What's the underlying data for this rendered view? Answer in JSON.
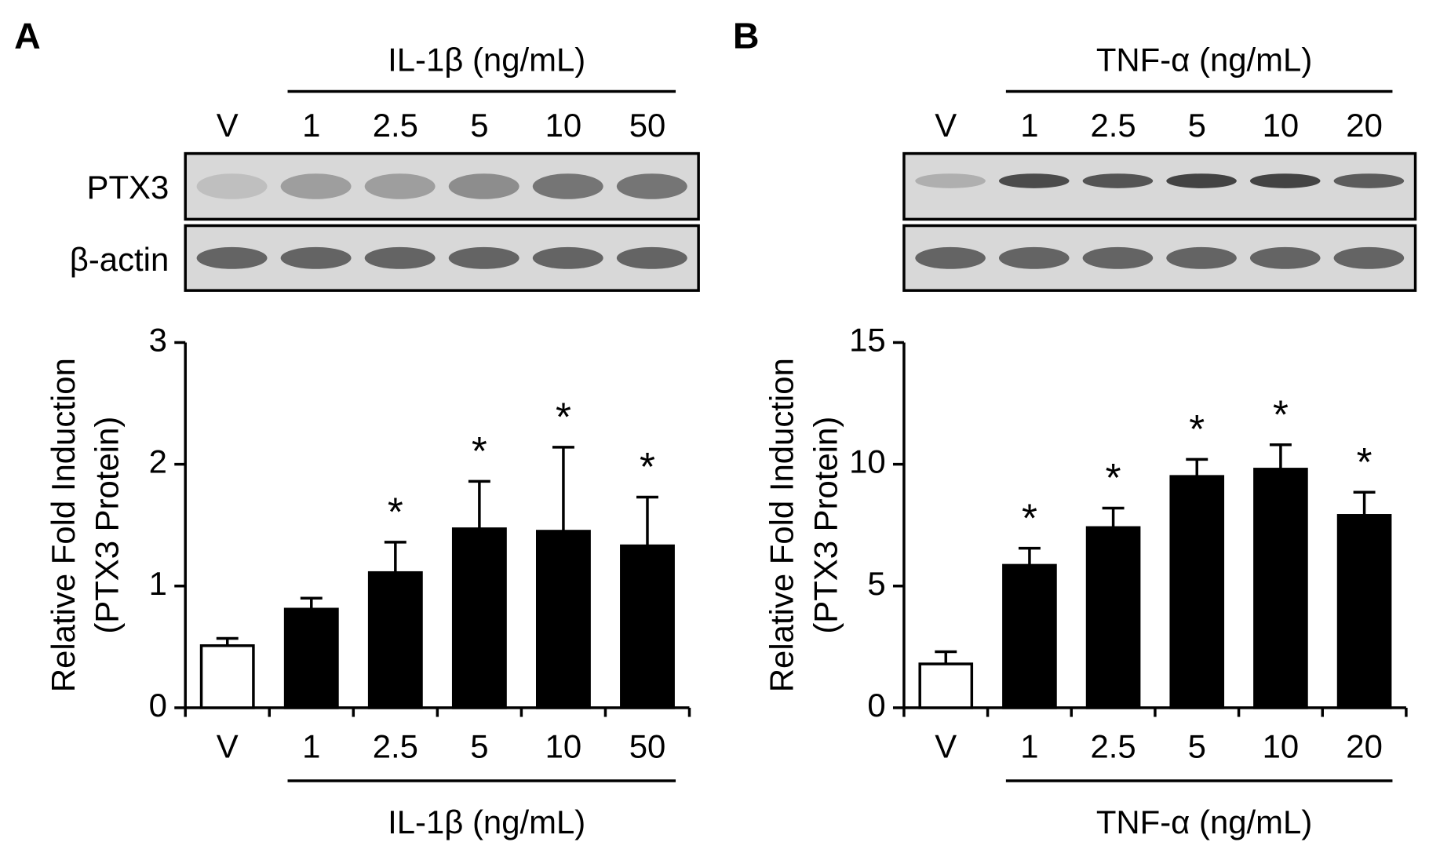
{
  "chart_data": [
    {
      "type": "bar",
      "panel_label": "A",
      "treatment_label": "IL-1β (ng/mL)",
      "y_label": [
        "Relative Fold Induction",
        "(PTX3 Protein)"
      ],
      "blot_labels": [
        "PTX3",
        "β-actin"
      ],
      "categories": [
        "V",
        "1",
        "2.5",
        "5",
        "10",
        "50"
      ],
      "values": [
        0.51,
        0.81,
        1.11,
        1.47,
        1.45,
        1.33
      ],
      "errors": [
        0.06,
        0.09,
        0.25,
        0.39,
        0.69,
        0.4
      ],
      "significance": [
        null,
        null,
        "*",
        "*",
        "*",
        "*"
      ],
      "colors": [
        "#ffffff",
        "#000000",
        "#000000",
        "#000000",
        "#000000",
        "#000000"
      ],
      "ylim": [
        0,
        3
      ],
      "yticks": [
        0,
        1,
        2,
        3
      ]
    },
    {
      "type": "bar",
      "panel_label": "B",
      "treatment_label": "TNF-α (ng/mL)",
      "y_label": [
        "Relative Fold Induction",
        "(PTX3 Protein)"
      ],
      "categories": [
        "V",
        "1",
        "2.5",
        "5",
        "10",
        "20"
      ],
      "values": [
        1.8,
        5.85,
        7.4,
        9.5,
        9.8,
        7.9
      ],
      "errors": [
        0.5,
        0.7,
        0.8,
        0.7,
        1.0,
        0.95
      ],
      "significance": [
        null,
        "*",
        "*",
        "*",
        "*",
        "*"
      ],
      "colors": [
        "#ffffff",
        "#000000",
        "#000000",
        "#000000",
        "#000000",
        "#000000"
      ],
      "ylim": [
        0,
        15
      ],
      "yticks": [
        0,
        5,
        10,
        15
      ]
    }
  ]
}
